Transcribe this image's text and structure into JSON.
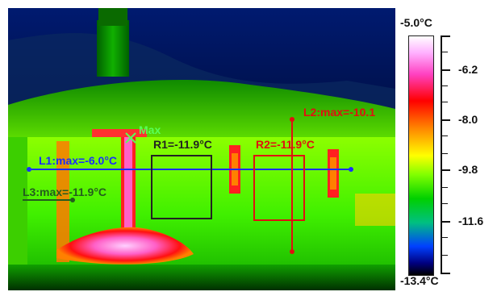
{
  "image": {
    "kind": "thermal-image",
    "palette": "rainbow-high-contrast"
  },
  "overlays": {
    "max_marker": "Max",
    "l1": "L1:max=-6.0°C",
    "l2": "L2:max=-10.1",
    "l3": "L3:max=-11.9°C",
    "r1": "R1=-11.9°C",
    "r2": "R2=-11.9°C"
  },
  "scale": {
    "max": "-5.0°C",
    "min": "-13.4°C",
    "labels": [
      "-6.2",
      "-8.0",
      "-9.8",
      "-11.6"
    ]
  },
  "colors": {
    "l1": "#1a2dff",
    "l2": "#e01010",
    "l3": "#245c1e",
    "r1": "#222222",
    "r2": "#e01010",
    "max": "#58ff58"
  }
}
